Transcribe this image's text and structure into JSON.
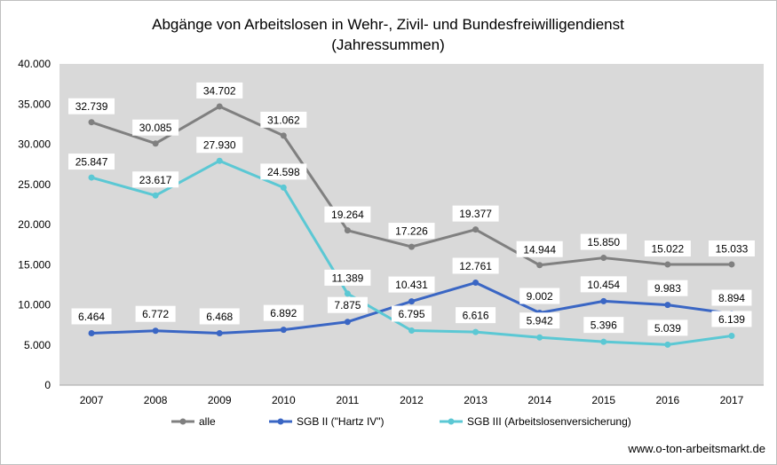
{
  "chart_data": {
    "type": "line",
    "title": "Abgänge von Arbeitslosen in Wehr-, Zivil- und Bundesfreiwilligendienst",
    "subtitle": "(Jahressummen)",
    "xlabel": "",
    "ylabel": "",
    "categories": [
      "2007",
      "2008",
      "2009",
      "2010",
      "2011",
      "2012",
      "2013",
      "2014",
      "2015",
      "2016",
      "2017"
    ],
    "ylim": [
      0,
      40000
    ],
    "yticks": [
      0,
      5000,
      10000,
      15000,
      20000,
      25000,
      30000,
      35000,
      40000
    ],
    "ytick_labels": [
      "0",
      "5.000",
      "10.000",
      "15.000",
      "20.000",
      "25.000",
      "30.000",
      "35.000",
      "40.000"
    ],
    "grid": false,
    "plot_background": "#d9d9d9",
    "legend_position": "bottom",
    "series": [
      {
        "name": "alle",
        "color": "#808080",
        "values": [
          32739,
          30085,
          34702,
          31062,
          19264,
          17226,
          19377,
          14944,
          15850,
          15022,
          15033
        ],
        "labels": [
          "32.739",
          "30.085",
          "34.702",
          "31.062",
          "19.264",
          "17.226",
          "19.377",
          "14.944",
          "15.850",
          "15.022",
          "15.033"
        ]
      },
      {
        "name": "SGB II (\"Hartz IV\")",
        "color": "#3a66c4",
        "values": [
          6464,
          6772,
          6468,
          6892,
          7875,
          10431,
          12761,
          9002,
          10454,
          9983,
          8894
        ],
        "labels": [
          "6.464",
          "6.772",
          "6.468",
          "6.892",
          "7.875",
          "10.431",
          "12.761",
          "9.002",
          "10.454",
          "9.983",
          "8.894"
        ]
      },
      {
        "name": "SGB III (Arbeitslosenversicherung)",
        "color": "#5bc8d4",
        "values": [
          25847,
          23617,
          27930,
          24598,
          11389,
          6795,
          6616,
          5942,
          5396,
          5039,
          6139
        ],
        "labels": [
          "25.847",
          "23.617",
          "27.930",
          "24.598",
          "11.389",
          "6.795",
          "6.616",
          "5.942",
          "5.396",
          "5.039",
          "6.139"
        ]
      }
    ]
  },
  "source": "www.o-ton-arbeitsmarkt.de"
}
